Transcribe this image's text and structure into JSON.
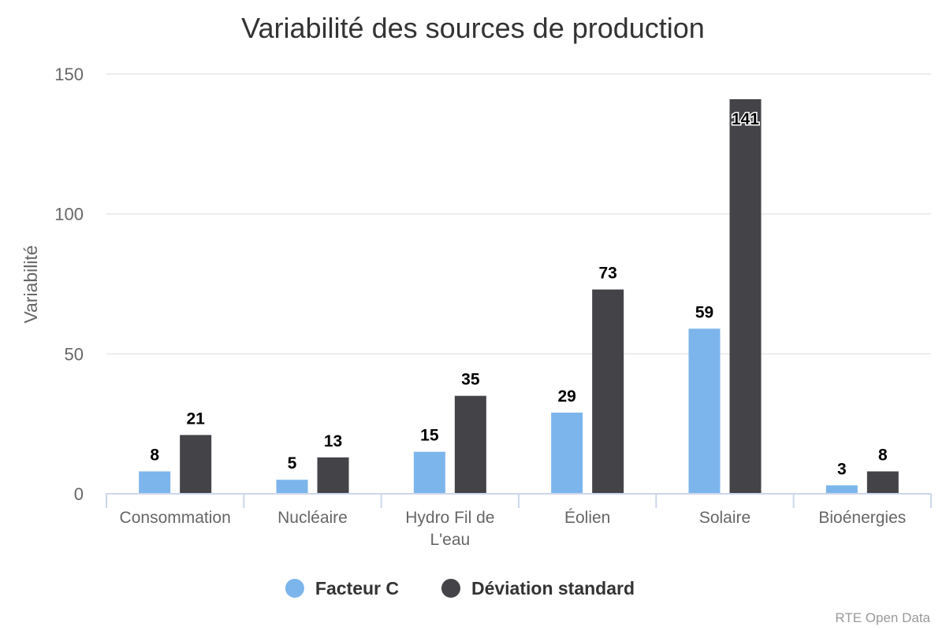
{
  "chart_data": {
    "type": "bar",
    "title": "Variabilité des sources de production",
    "ylabel": "Variabilité",
    "xlabel": "",
    "ylim": [
      0,
      150
    ],
    "yticks": [
      0,
      50,
      100,
      150
    ],
    "grid": true,
    "legend_position": "bottom-center",
    "categories": [
      "Consommation",
      "Nucléaire",
      "Hydro Fil de L'eau",
      "Éolien",
      "Solaire",
      "Bioénergies"
    ],
    "series": [
      {
        "name": "Facteur C",
        "color": "#7cb5ec",
        "values": [
          8,
          5,
          15,
          29,
          59,
          3
        ]
      },
      {
        "name": "Déviation standard",
        "color": "#434348",
        "values": [
          21,
          13,
          35,
          73,
          141,
          8
        ]
      }
    ],
    "credits": "RTE Open Data"
  }
}
